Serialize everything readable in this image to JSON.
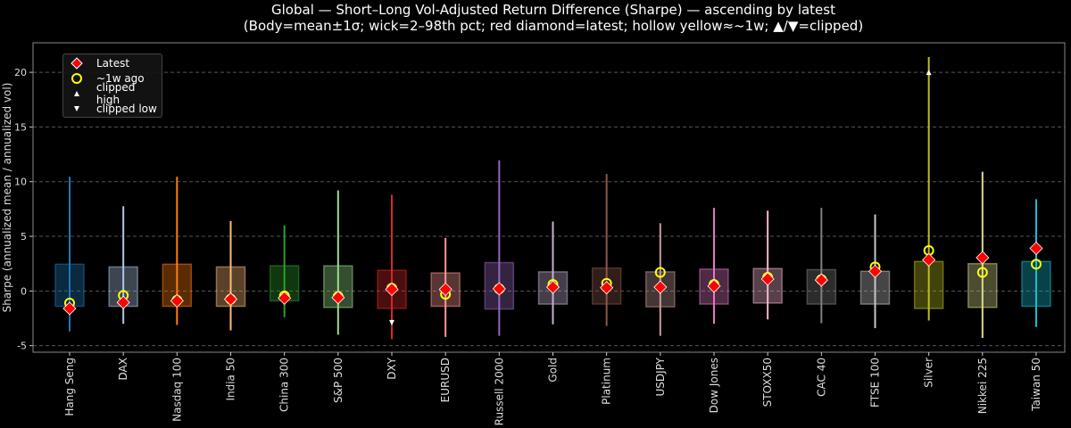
{
  "title_line1": "Global — Short–Long Vol-Adjusted Return Difference (Sharpe) — ascending by latest",
  "title_line2": "(Body=mean±1σ; wick=2–98th pct; red diamond=latest; hollow yellow≈~1w; ▲/▼=clipped)",
  "legend": {
    "latest": "Latest",
    "week_ago": "~1w ago",
    "clipped_high": "clipped high",
    "clipped_low": "clipped low"
  },
  "colors": {
    "latest": "#ff0000",
    "week_ago": "#ffff00",
    "grid": "#555555",
    "background": "#000000"
  },
  "chart_data": {
    "type": "candlestick-range",
    "ylabel": "Sharpe (annualized mean / annualized vol)",
    "ylim": [
      -5.6,
      22.7
    ],
    "yticks": [
      -5,
      0,
      5,
      10,
      15,
      20
    ],
    "grid": "horizontal dashed",
    "legend_position": "top-left",
    "categories": [
      "Hang Seng",
      "DAX",
      "Nasdaq 100",
      "India 50",
      "China 300",
      "S&P 500",
      "DXY",
      "EURUSD",
      "Russell 2000",
      "Gold",
      "Platinum",
      "USDJPY",
      "Dow Jones",
      "STOXX50",
      "CAC 40",
      "FTSE 100",
      "Silver",
      "Nikkei 225",
      "Taiwan 50"
    ],
    "series_colors": [
      "#1f77b4",
      "#aec7e8",
      "#ff7f0e",
      "#ffbb78",
      "#2ca02c",
      "#98df8a",
      "#d62728",
      "#ff9896",
      "#9467bd",
      "#c5b0d5",
      "#8c564b",
      "#c49c94",
      "#e377c2",
      "#f7b6d2",
      "#7f7f7f",
      "#c7c7c7",
      "#bcbd22",
      "#dbdb8d",
      "#17becf"
    ],
    "wick_low": [
      -3.7,
      -3.0,
      -3.1,
      -3.6,
      -2.4,
      -4.0,
      -4.4,
      -4.2,
      -4.1,
      -3.05,
      -3.2,
      -4.1,
      -3.0,
      -2.6,
      -2.95,
      -3.4,
      -2.7,
      -4.3,
      -3.3
    ],
    "wick_high": [
      10.45,
      7.75,
      10.45,
      6.4,
      6.0,
      9.2,
      8.8,
      4.85,
      11.95,
      6.35,
      10.7,
      6.2,
      7.6,
      7.35,
      7.6,
      7.0,
      21.4,
      10.9,
      8.4
    ],
    "body_low": [
      -1.4,
      -1.4,
      -1.4,
      -1.4,
      -0.9,
      -1.5,
      -1.6,
      -1.4,
      -1.65,
      -1.2,
      -1.2,
      -1.45,
      -1.2,
      -1.1,
      -1.2,
      -1.2,
      -1.6,
      -1.5,
      -1.4
    ],
    "body_high": [
      2.45,
      2.2,
      2.45,
      2.2,
      2.3,
      2.3,
      1.9,
      1.65,
      2.6,
      1.75,
      2.1,
      1.75,
      2.0,
      2.05,
      1.95,
      1.8,
      2.7,
      2.5,
      2.7
    ],
    "latest": [
      -1.6,
      -1.05,
      -0.9,
      -0.75,
      -0.65,
      -0.6,
      0.15,
      0.15,
      0.2,
      0.35,
      0.3,
      0.35,
      0.45,
      1.1,
      1.0,
      1.8,
      2.85,
      3.05,
      3.9
    ],
    "week_ago": [
      -1.1,
      -0.4,
      -0.85,
      -0.75,
      -0.45,
      -0.5,
      0.25,
      -0.3,
      0.2,
      0.6,
      0.7,
      1.7,
      0.6,
      1.25,
      1.05,
      2.2,
      3.7,
      1.7,
      2.45
    ],
    "clipped_high": [
      {
        "category": "Silver",
        "value": 20
      }
    ],
    "clipped_low": [
      {
        "category": "DXY",
        "value": -2.9
      }
    ]
  }
}
